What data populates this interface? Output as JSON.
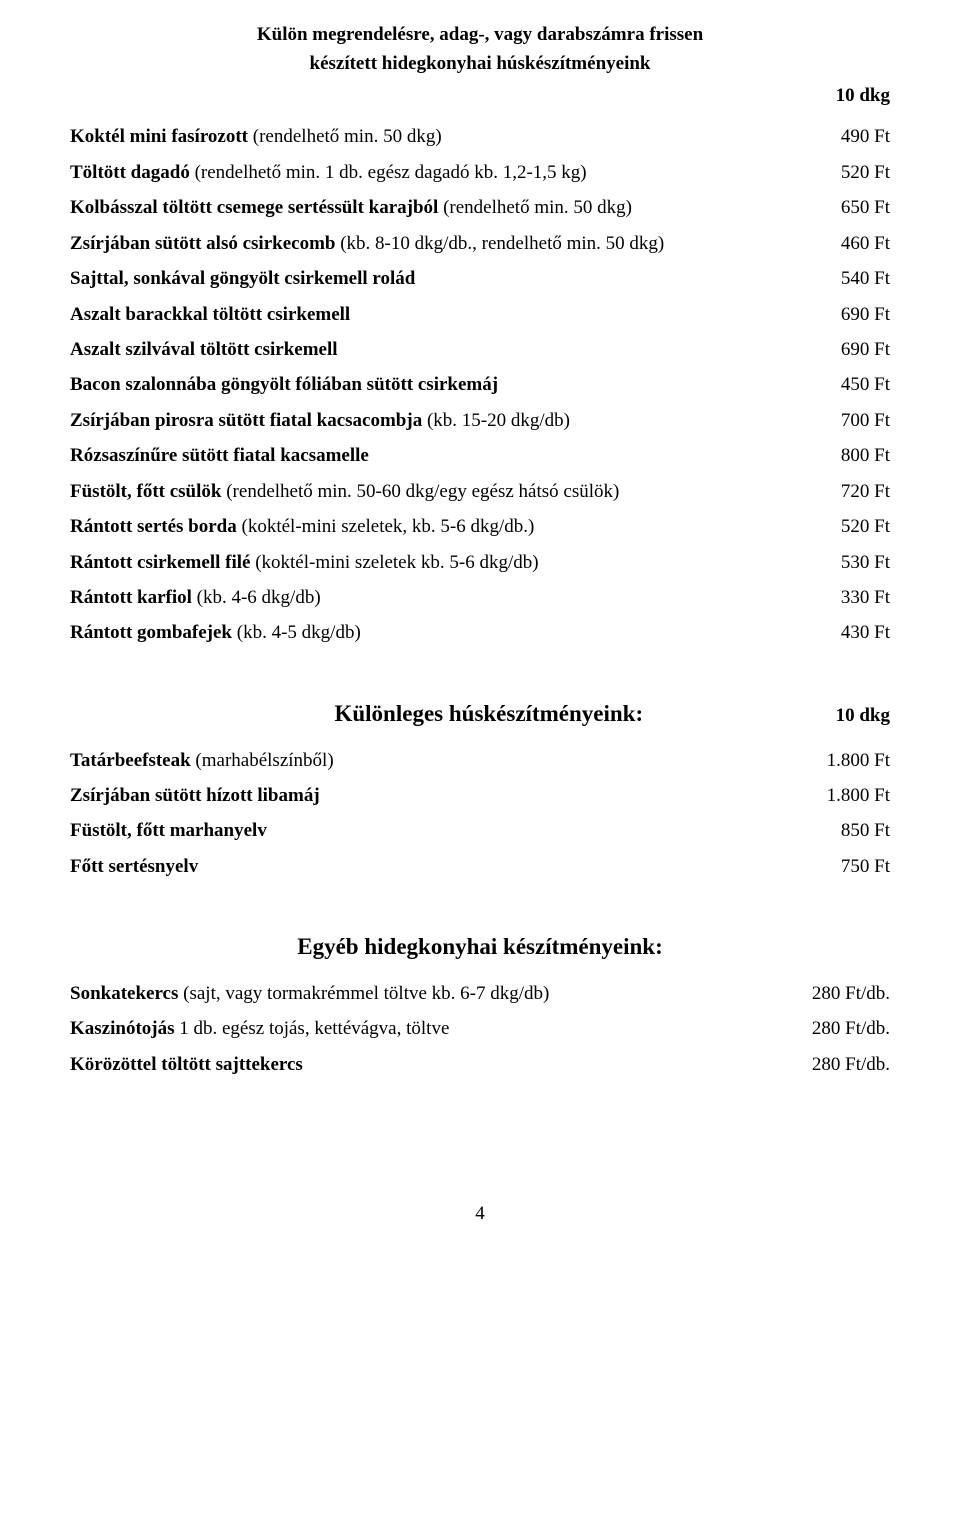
{
  "heading": {
    "line1": "Külön megrendelésre, adag-, vagy darabszámra frissen",
    "line2": "készített hidegkonyhai húskészítményeink",
    "unit": "10 dkg"
  },
  "mainItems": [
    {
      "bold": "Koktél mini fasírozott",
      "rest": " (rendelhető min. 50 dkg)",
      "price": "490 Ft"
    },
    {
      "bold": "Töltött dagadó",
      "rest": " (rendelhető min. 1 db. egész dagadó kb. 1,2-1,5 kg)",
      "price": "520 Ft"
    },
    {
      "bold": "Kolbásszal töltött csemege sertéssült karajból",
      "rest": " (rendelhető min. 50 dkg)",
      "price": "650 Ft"
    },
    {
      "bold": "Zsírjában sütött alsó csirkecomb",
      "rest": " (kb. 8-10 dkg/db., rendelhető min. 50 dkg)",
      "price": "460 Ft"
    },
    {
      "bold": "Sajttal, sonkával göngyölt csirkemell rolád",
      "rest": "",
      "price": "540 Ft"
    },
    {
      "bold": "Aszalt barackkal töltött csirkemell",
      "rest": "",
      "price": "690 Ft"
    },
    {
      "bold": "Aszalt szilvával töltött csirkemell",
      "rest": "",
      "price": "690 Ft"
    },
    {
      "bold": "Bacon szalonnába göngyölt fóliában sütött csirkemáj",
      "rest": "",
      "price": "450 Ft"
    },
    {
      "bold": "Zsírjában pirosra sütött fiatal kacsacombja",
      "rest": " (kb. 15-20 dkg/db)",
      "price": "700 Ft"
    },
    {
      "bold": "Rózsaszínűre sütött fiatal kacsamelle",
      "rest": "",
      "price": "800 Ft"
    },
    {
      "bold": "Füstölt, főtt csülök",
      "rest": " (rendelhető min. 50-60 dkg/egy egész hátsó csülök)",
      "price": "720 Ft"
    },
    {
      "bold": "Rántott sertés borda",
      "rest": " (koktél-mini szeletek, kb. 5-6 dkg/db.)",
      "price": "520 Ft"
    },
    {
      "bold": "Rántott csirkemell filé",
      "rest": " (koktél-mini szeletek kb. 5-6 dkg/db)",
      "price": "530 Ft"
    },
    {
      "bold": "Rántott karfiol",
      "rest": " (kb. 4-6 dkg/db)",
      "price": "330 Ft"
    },
    {
      "bold": "Rántott gombafejek",
      "rest": " (kb. 4-5 dkg/db)",
      "price": "430 Ft"
    }
  ],
  "section2": {
    "title": "Különleges húskészítményeink:",
    "unit": "10 dkg",
    "items": [
      {
        "bold": "Tatárbeefsteak",
        "rest": " (marhabélszínből)",
        "price": "1.800 Ft"
      },
      {
        "bold": "Zsírjában sütött hízott libamáj",
        "rest": "",
        "price": "1.800 Ft"
      },
      {
        "bold": "Füstölt, főtt marhanyelv",
        "rest": "",
        "price": "850 Ft"
      },
      {
        "bold": "Főtt sertésnyelv",
        "rest": "",
        "price": "750 Ft"
      }
    ]
  },
  "section3": {
    "title": "Egyéb hidegkonyhai készítményeink:",
    "items": [
      {
        "bold": "Sonkatekercs",
        "rest": " (sajt, vagy tormakrémmel töltve kb. 6-7 dkg/db)",
        "price": "280 Ft/db."
      },
      {
        "bold": "Kaszinótojás",
        "rest": " 1 db. egész tojás, kettévágva, töltve",
        "price": "280 Ft/db."
      },
      {
        "bold": "Körözöttel töltött sajttekercs",
        "rest": "",
        "price": "280 Ft/db."
      }
    ]
  },
  "pageNumber": "4"
}
